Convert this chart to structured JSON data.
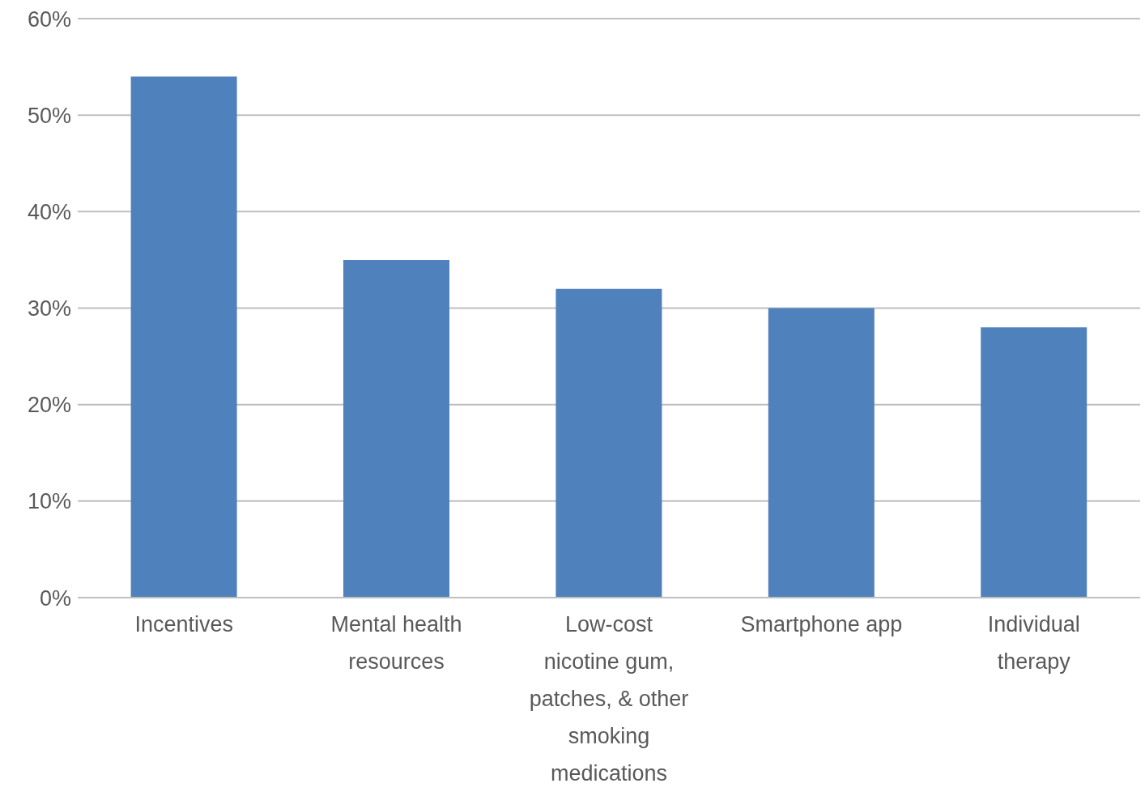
{
  "chart_data": {
    "type": "bar",
    "categories": [
      "Incentives",
      "Mental health resources",
      "Low-cost nicotine gum, patches, & other smoking medications",
      "Smartphone app",
      "Individual therapy"
    ],
    "values": [
      54,
      35,
      32,
      30,
      28
    ],
    "color": "#4f81bd",
    "ylim": [
      0,
      60
    ],
    "yticks": [
      {
        "value": 0,
        "label": "0%"
      },
      {
        "value": 10,
        "label": "10%"
      },
      {
        "value": 20,
        "label": "20%"
      },
      {
        "value": 30,
        "label": "30%"
      },
      {
        "value": 40,
        "label": "40%"
      },
      {
        "value": 50,
        "label": "50%"
      },
      {
        "value": 60,
        "label": "60%"
      }
    ],
    "grid": "y"
  }
}
